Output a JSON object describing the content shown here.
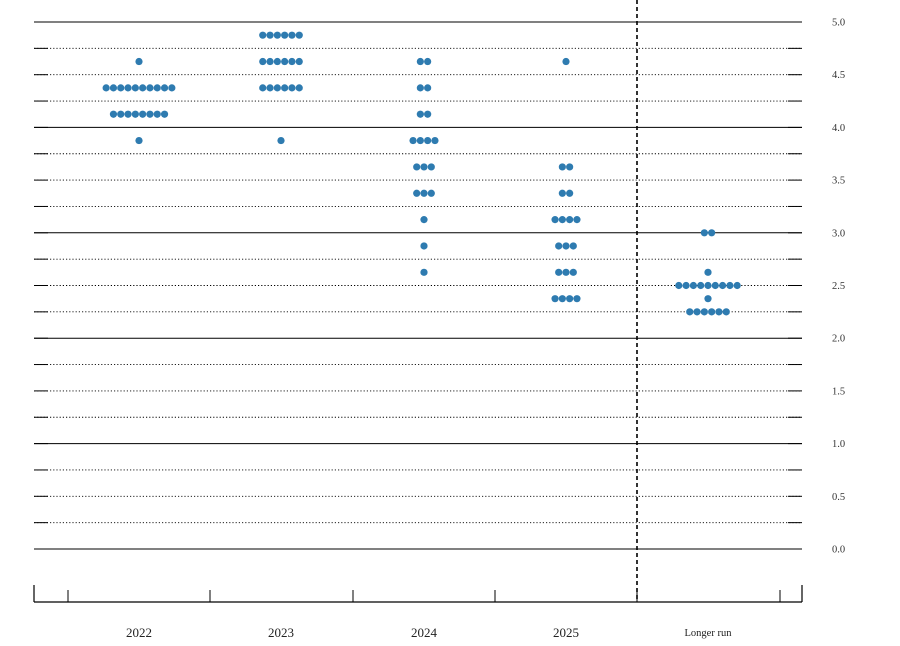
{
  "chart_data": {
    "type": "scatter",
    "title": "",
    "xlabel": "",
    "ylabel": "",
    "categories": [
      "2022",
      "2023",
      "2024",
      "2025",
      "Longer run"
    ],
    "ylim": [
      0,
      5
    ],
    "y_ticks": [
      "0.0",
      "0.5",
      "1.0",
      "1.5",
      "2.0",
      "2.5",
      "3.0",
      "3.5",
      "4.0",
      "4.5",
      "5.0"
    ],
    "minor_step": 0.25,
    "major_gridlines": [
      0,
      1,
      2,
      3,
      4,
      5
    ],
    "minor_gridlines": "dotted",
    "divider_between": [
      "2025",
      "Longer run"
    ],
    "dot_color": "#2e7bb0",
    "series": [
      {
        "category": "2022",
        "dots": [
          {
            "y": 4.625,
            "count": 1
          },
          {
            "y": 4.375,
            "count": 10
          },
          {
            "y": 4.125,
            "count": 8
          },
          {
            "y": 3.875,
            "count": 1
          }
        ]
      },
      {
        "category": "2023",
        "dots": [
          {
            "y": 4.875,
            "count": 6
          },
          {
            "y": 4.625,
            "count": 6
          },
          {
            "y": 4.375,
            "count": 6
          },
          {
            "y": 3.875,
            "count": 1
          }
        ]
      },
      {
        "category": "2024",
        "dots": [
          {
            "y": 4.625,
            "count": 2
          },
          {
            "y": 4.375,
            "count": 2
          },
          {
            "y": 4.125,
            "count": 2
          },
          {
            "y": 3.875,
            "count": 4
          },
          {
            "y": 3.625,
            "count": 3
          },
          {
            "y": 3.375,
            "count": 3
          },
          {
            "y": 3.125,
            "count": 1
          },
          {
            "y": 2.875,
            "count": 1
          },
          {
            "y": 2.625,
            "count": 1
          }
        ]
      },
      {
        "category": "2025",
        "dots": [
          {
            "y": 4.625,
            "count": 1
          },
          {
            "y": 3.625,
            "count": 2
          },
          {
            "y": 3.375,
            "count": 2
          },
          {
            "y": 3.125,
            "count": 4
          },
          {
            "y": 2.875,
            "count": 3
          },
          {
            "y": 2.625,
            "count": 3
          },
          {
            "y": 2.375,
            "count": 4
          }
        ]
      },
      {
        "category": "Longer run",
        "dots": [
          {
            "y": 3.0,
            "count": 2
          },
          {
            "y": 2.625,
            "count": 1
          },
          {
            "y": 2.5,
            "count": 9
          },
          {
            "y": 2.375,
            "count": 1
          },
          {
            "y": 2.25,
            "count": 6
          }
        ]
      }
    ]
  }
}
